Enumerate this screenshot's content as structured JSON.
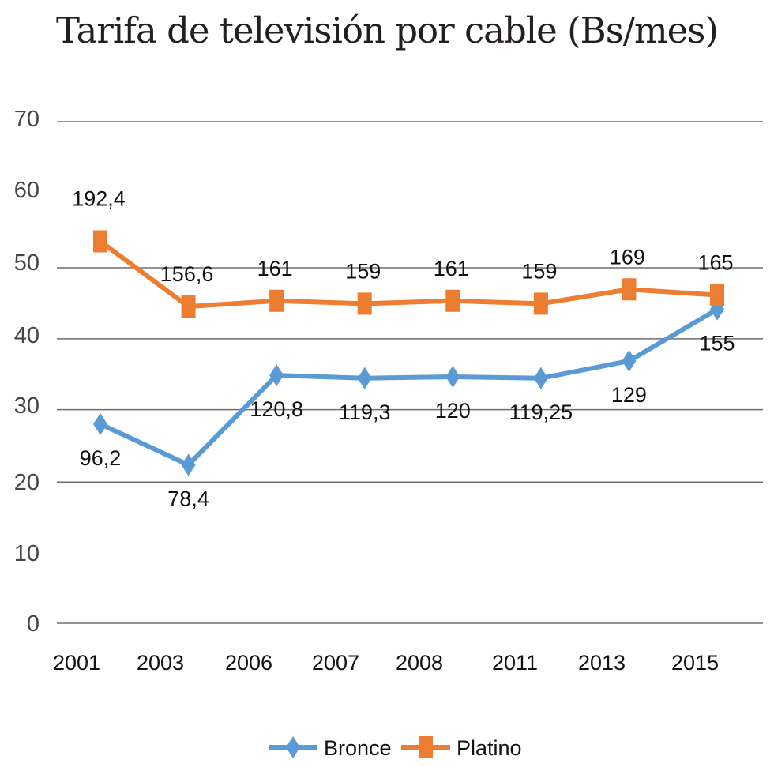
{
  "chart_data": {
    "type": "line",
    "title": "Tarifa de televisión por cable (Bs/mes)",
    "categories": [
      "2001",
      "2003",
      "2006",
      "2007",
      "2008",
      "2011",
      "2013",
      "2015"
    ],
    "yticks": [
      "0",
      "10",
      "20",
      "30",
      "40",
      "50",
      "60",
      "70"
    ],
    "ylim": [
      0,
      70
    ],
    "grid": true,
    "legend_position": "bottom",
    "series": [
      {
        "name": "Bronce",
        "color": "#5b9bd5",
        "marker": "diamond",
        "label_position": "below",
        "values": [
          96.2,
          78.4,
          120.8,
          119.3,
          120,
          119.25,
          129,
          155
        ],
        "plot_level": [
          27.8,
          22.1,
          34.6,
          34.2,
          34.4,
          34.2,
          36.6,
          43.8
        ],
        "labels": [
          "96,2",
          "78,4",
          "120,8",
          "119,3",
          "120",
          "119,25",
          "129",
          "155"
        ]
      },
      {
        "name": "Platino",
        "color": "#ed7d31",
        "marker": "square",
        "label_position": "above",
        "values": [
          192.4,
          156.6,
          161,
          159,
          161,
          159,
          169,
          165
        ],
        "plot_level": [
          53.3,
          44.2,
          45.0,
          44.6,
          45.0,
          44.6,
          46.6,
          45.8
        ],
        "labels": [
          "192,4",
          "156,6",
          "161",
          "159",
          "161",
          "159",
          "169",
          "165"
        ]
      }
    ]
  }
}
